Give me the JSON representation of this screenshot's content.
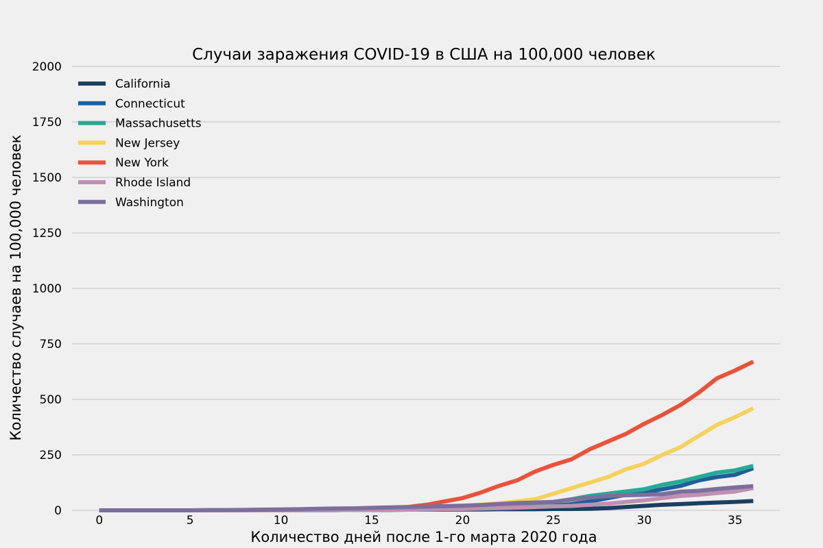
{
  "chart_data": {
    "type": "line",
    "title": "Случаи заражения COVID-19 в США на 100,000 человек",
    "xlabel": "Количество дней после 1-го марта 2020 года",
    "ylabel": "Количество случаев на 100,000 человек",
    "xlim": [
      -1.5,
      37.5
    ],
    "ylim": [
      0,
      2000
    ],
    "xticks": [
      0,
      5,
      10,
      15,
      20,
      25,
      30,
      35
    ],
    "yticks": [
      0,
      250,
      500,
      750,
      1000,
      1250,
      1500,
      1750,
      2000
    ],
    "grid": "horizontal",
    "legend_position": "top-left",
    "x": [
      0,
      1,
      2,
      3,
      4,
      5,
      6,
      7,
      8,
      9,
      10,
      11,
      12,
      13,
      14,
      15,
      16,
      17,
      18,
      19,
      20,
      21,
      22,
      23,
      24,
      25,
      26,
      27,
      28,
      29,
      30,
      31,
      32,
      33,
      34,
      35,
      36
    ],
    "series": [
      {
        "name": "California",
        "color": "#1c3f62",
        "values": [
          0,
          0,
          0,
          0,
          0,
          0,
          0,
          0,
          0,
          0,
          1,
          1,
          1,
          1,
          2,
          2,
          2,
          3,
          3,
          3,
          4,
          4,
          5,
          5,
          5,
          6,
          6,
          7,
          10,
          15,
          20,
          25,
          28,
          32,
          35,
          38,
          42
        ]
      },
      {
        "name": "Connecticut",
        "color": "#1f5f99",
        "values": [
          0,
          0,
          0,
          0,
          0,
          0,
          0,
          0,
          0,
          0,
          1,
          1,
          1,
          1,
          2,
          2,
          3,
          4,
          5,
          6,
          7,
          8,
          10,
          13,
          15,
          20,
          28,
          40,
          55,
          70,
          80,
          95,
          110,
          135,
          150,
          160,
          190
        ]
      },
      {
        "name": "Massachusetts",
        "color": "#27aa94",
        "values": [
          0,
          0,
          0,
          0,
          0,
          0,
          0,
          0,
          0,
          0,
          1,
          1,
          1,
          2,
          2,
          3,
          4,
          5,
          7,
          8,
          10,
          14,
          18,
          22,
          28,
          38,
          50,
          65,
          75,
          85,
          95,
          115,
          130,
          150,
          170,
          180,
          200
        ]
      },
      {
        "name": "New Jersey",
        "color": "#f5d25d",
        "values": [
          0,
          0,
          0,
          0,
          0,
          0,
          0,
          0,
          0,
          0,
          1,
          1,
          2,
          2,
          3,
          4,
          6,
          8,
          12,
          16,
          20,
          25,
          32,
          40,
          50,
          75,
          100,
          125,
          150,
          185,
          210,
          250,
          285,
          335,
          385,
          420,
          460
        ]
      },
      {
        "name": "New York",
        "color": "#e9533b",
        "values": [
          0,
          0,
          0,
          0,
          0,
          0,
          0,
          0,
          0,
          1,
          2,
          3,
          4,
          5,
          7,
          10,
          12,
          15,
          25,
          40,
          55,
          80,
          110,
          135,
          175,
          205,
          230,
          275,
          310,
          345,
          390,
          430,
          475,
          530,
          595,
          630,
          670
        ]
      },
      {
        "name": "Rhode Island",
        "color": "#bf8fb2",
        "values": [
          0,
          0,
          0,
          0,
          0,
          0,
          0,
          0,
          0,
          0,
          1,
          1,
          1,
          1,
          2,
          2,
          3,
          3,
          4,
          5,
          6,
          8,
          10,
          12,
          15,
          18,
          20,
          25,
          30,
          38,
          45,
          55,
          65,
          70,
          78,
          85,
          100
        ]
      },
      {
        "name": "Washington",
        "color": "#7b6f9c",
        "values": [
          0,
          0,
          0,
          0,
          0,
          0,
          1,
          1,
          2,
          3,
          4,
          5,
          7,
          8,
          9,
          11,
          13,
          15,
          17,
          19,
          21,
          24,
          28,
          33,
          35,
          38,
          48,
          58,
          64,
          68,
          70,
          73,
          84,
          88,
          96,
          103,
          109
        ]
      }
    ]
  }
}
